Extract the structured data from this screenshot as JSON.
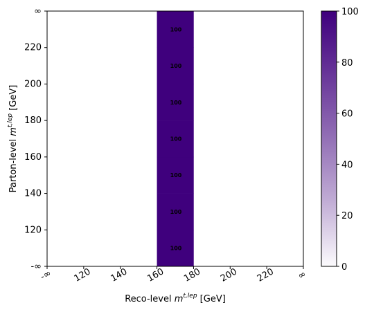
{
  "chart_data": {
    "type": "heatmap",
    "xlabel_prefix": "Reco-level ",
    "xlabel_var": "m",
    "xlabel_sup": "t,lep",
    "xlabel_suffix": " [GeV]",
    "ylabel_prefix": "Parton-level ",
    "ylabel_var": "m",
    "ylabel_sup": "t,lep",
    "ylabel_suffix": " [GeV]",
    "x_edges": [
      "-∞",
      "120",
      "140",
      "160",
      "180",
      "200",
      "220",
      "∞"
    ],
    "y_edges": [
      "-∞",
      "120",
      "140",
      "160",
      "180",
      "200",
      "220",
      "∞"
    ],
    "x_tick_labels": [
      "-∞",
      "120",
      "140",
      "160",
      "180",
      "200",
      "220",
      "∞"
    ],
    "y_tick_labels": [
      "-∞",
      "120",
      "140",
      "160",
      "180",
      "200",
      "220",
      "∞"
    ],
    "cells": [
      {
        "x_bin": 3,
        "y_bin": 0,
        "value": 100,
        "label": "100"
      },
      {
        "x_bin": 3,
        "y_bin": 1,
        "value": 100,
        "label": "100"
      },
      {
        "x_bin": 3,
        "y_bin": 2,
        "value": 100,
        "label": "100"
      },
      {
        "x_bin": 3,
        "y_bin": 3,
        "value": 100,
        "label": "100"
      },
      {
        "x_bin": 3,
        "y_bin": 4,
        "value": 100,
        "label": "100"
      },
      {
        "x_bin": 3,
        "y_bin": 5,
        "value": 100,
        "label": "100"
      },
      {
        "x_bin": 3,
        "y_bin": 6,
        "value": 100,
        "label": "100"
      }
    ],
    "colorbar": {
      "min": 0,
      "max": 100,
      "ticks": [
        "0",
        "20",
        "40",
        "60",
        "80",
        "100"
      ],
      "colormap": "Purples",
      "color_low": "#fcfbfd",
      "color_high": "#3f007d"
    }
  }
}
